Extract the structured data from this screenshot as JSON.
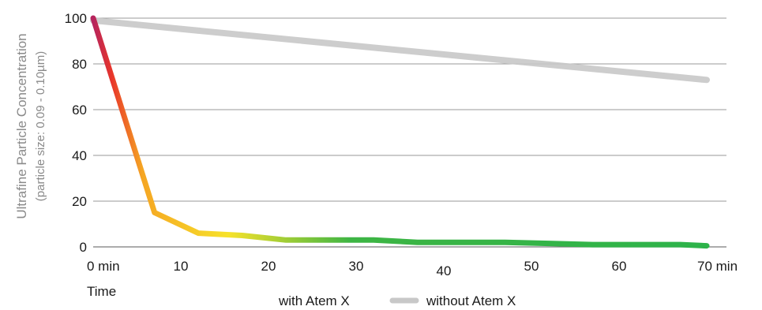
{
  "chart_data": {
    "type": "line",
    "ylabel": "Ultrafine Particle Concentration",
    "ylabel_sub": "(particle size: 0.09 - 0.10µm)",
    "xlabel": "Time",
    "ylim": [
      0,
      100
    ],
    "xlim": [
      0,
      70
    ],
    "y_ticks": [
      0,
      20,
      40,
      60,
      80,
      100
    ],
    "x_ticks": [
      {
        "value": 0,
        "label": "0 min"
      },
      {
        "value": 10,
        "label": "10"
      },
      {
        "value": 20,
        "label": "20"
      },
      {
        "value": 30,
        "label": "30"
      },
      {
        "value": 40,
        "label": "40"
      },
      {
        "value": 50,
        "label": "50"
      },
      {
        "value": 60,
        "label": "60"
      },
      {
        "value": 70,
        "label": "70 min"
      }
    ],
    "grid": "horizontal",
    "legend_position": "bottom",
    "series": [
      {
        "name": "with Atem X",
        "style": "gradient",
        "gradient_colors": [
          "#b5245e",
          "#e8352a",
          "#f5a623",
          "#f7e22a",
          "#3db544",
          "#2db34a"
        ],
        "x": [
          0,
          7,
          12,
          17,
          22,
          27,
          32,
          37,
          42,
          47,
          52,
          57,
          62,
          67,
          70
        ],
        "y": [
          100,
          15,
          6,
          5,
          3,
          3,
          3,
          2,
          2,
          2,
          1.5,
          1,
          1,
          1,
          0.5
        ]
      },
      {
        "name": "without Atem X",
        "color": "#c8c8c8",
        "x": [
          0,
          70
        ],
        "y": [
          99,
          73
        ]
      }
    ]
  }
}
